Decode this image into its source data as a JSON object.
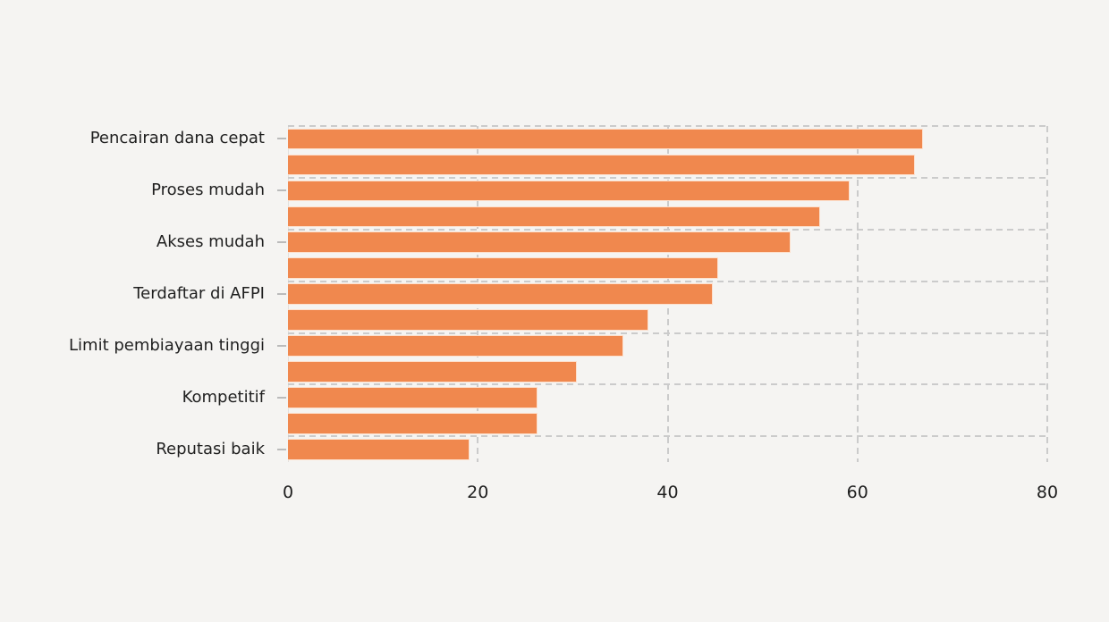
{
  "chart_data": {
    "type": "bar",
    "orientation": "horizontal",
    "title": "",
    "xlabel": "",
    "ylabel": "",
    "xlim": [
      0,
      80
    ],
    "x_ticks": [
      0,
      20,
      40,
      60,
      80
    ],
    "x_tick_labels": [
      "0",
      "20",
      "40",
      "60",
      "80"
    ],
    "grid": true,
    "grid_style": "dashed",
    "legend": "none",
    "categories": [
      "Pencairan dana cepat",
      "Proses mudah",
      "Akses mudah",
      "Terdaftar di AFPI",
      "Limit pembiayaan tinggi",
      "Kompetitif",
      "Reputasi baik"
    ],
    "bars": [
      {
        "label": "Pencairan dana cepat",
        "value": 66.9
      },
      {
        "label": "",
        "value": 66.1
      },
      {
        "label": "Proses mudah",
        "value": 59.2
      },
      {
        "label": "",
        "value": 56.1
      },
      {
        "label": "Akses mudah",
        "value": 53.0
      },
      {
        "label": "",
        "value": 45.3
      },
      {
        "label": "Terdaftar di AFPI",
        "value": 44.8
      },
      {
        "label": "",
        "value": 38.0
      },
      {
        "label": "Limit pembiayaan tinggi",
        "value": 35.3
      },
      {
        "label": "",
        "value": 30.4
      },
      {
        "label": "Kompetitif",
        "value": 26.3
      },
      {
        "label": "",
        "value": 26.3
      },
      {
        "label": "Reputasi baik",
        "value": 19.1
      }
    ],
    "colors": {
      "bar_fill": "#f0884e",
      "bar_edge": "#fdeee2",
      "gridline": "#cbcbcb",
      "background": "#f5f4f2",
      "text": "#1f1f1f",
      "tick_mark": "#bbbbbb"
    }
  }
}
